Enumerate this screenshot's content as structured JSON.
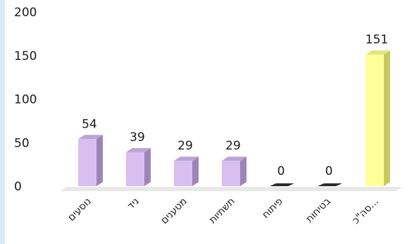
{
  "chart_data": {
    "type": "bar",
    "categories": [
      "נוסעים",
      "ניד",
      "מטענים",
      "תשתיות",
      "פיתוח",
      "בטיחות",
      "סה\"כ..."
    ],
    "values": [
      54,
      39,
      29,
      29,
      0,
      0,
      151
    ],
    "data_labels": [
      "54",
      "39",
      "29",
      "29",
      "0",
      "0",
      "151"
    ],
    "y_ticks": [
      "0",
      "50",
      "100",
      "150",
      "200"
    ],
    "y_tick_values": [
      0,
      50,
      100,
      150,
      200
    ],
    "ylim": [
      0,
      200
    ],
    "grid": false,
    "legend": "none",
    "title": "",
    "xlabel": "",
    "ylabel": "",
    "colors": {
      "bar": "#d8bff0",
      "bar_side": "#9f84b9",
      "bar_top": "#bda3d8",
      "total_bar": "#ffff9a",
      "total_side": "#c8c860",
      "total_top": "#e6e67a",
      "zero_bar": "#2b2b2b",
      "floor": "#e8e8e8",
      "left_strip": "#dce9f6"
    }
  }
}
